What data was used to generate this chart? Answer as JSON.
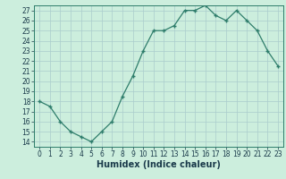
{
  "x": [
    0,
    1,
    2,
    3,
    4,
    5,
    6,
    7,
    8,
    9,
    10,
    11,
    12,
    13,
    14,
    15,
    16,
    17,
    18,
    19,
    20,
    21,
    22,
    23
  ],
  "y": [
    18,
    17.5,
    16,
    15,
    14.5,
    14,
    15,
    16,
    18.5,
    20.5,
    23,
    25,
    25,
    25.5,
    27,
    27,
    27.5,
    26.5,
    26,
    27,
    26,
    25,
    23,
    21.5
  ],
  "xlabel": "Humidex (Indice chaleur)",
  "line_color": "#2e7d6b",
  "marker": "+",
  "bg_color": "#cceedd",
  "grid_color": "#aacccc",
  "xlim": [
    -0.5,
    23.5
  ],
  "ylim": [
    13.5,
    27.5
  ],
  "yticks": [
    14,
    15,
    16,
    17,
    18,
    19,
    20,
    21,
    22,
    23,
    24,
    25,
    26,
    27
  ],
  "xticks": [
    0,
    1,
    2,
    3,
    4,
    5,
    6,
    7,
    8,
    9,
    10,
    11,
    12,
    13,
    14,
    15,
    16,
    17,
    18,
    19,
    20,
    21,
    22,
    23
  ],
  "tick_fontsize": 5.5,
  "xlabel_fontsize": 7.0
}
